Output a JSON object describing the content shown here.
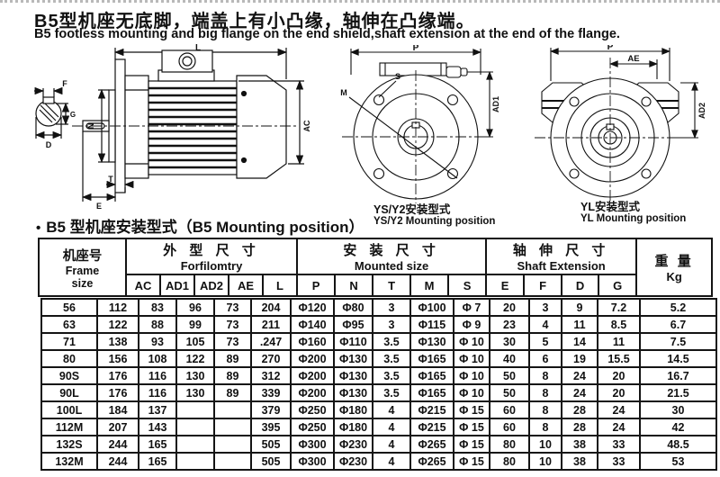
{
  "header": {
    "title_cn": "B5型机座无底脚，端盖上有小凸缘，轴伸在凸缘端。",
    "title_en": "B5 footless mounting and big flange on the end shield,shaft extension at the end of the flange."
  },
  "section": {
    "bullet": "•",
    "heading": "B5 型机座安装型式（B5 Mounting position）"
  },
  "drawings": {
    "side_view": {
      "dim_labels": {
        "L": "L",
        "AC": "AC",
        "N": "N",
        "T": "T",
        "E": "E",
        "F": "F",
        "G": "G",
        "D": "D"
      }
    },
    "ys": {
      "dim_labels": {
        "P": "P",
        "M": "M",
        "S": "S",
        "AD1": "AD1"
      },
      "caption_cn": "YS/Y2安装型式",
      "caption_en": "YS/Y2 Mounting position"
    },
    "yl": {
      "dim_labels": {
        "P": "P",
        "AE": "AE",
        "AD2": "AD2"
      },
      "caption_cn": "YL安装型式",
      "caption_en": "YL Mounting position"
    }
  },
  "table": {
    "frame": {
      "cn": "机座号",
      "en_line1": "Frame",
      "en_line2": "size"
    },
    "groups": [
      {
        "cn": "外 型 尺 寸",
        "en": "Forfilomtry",
        "cols": [
          "AC",
          "AD1",
          "AD2",
          "AE",
          "L"
        ]
      },
      {
        "cn": "安 装 尺 寸",
        "en": "Mounted size",
        "cols": [
          "P",
          "N",
          "T",
          "M",
          "S"
        ]
      },
      {
        "cn": "轴 伸 尺 寸",
        "en": "Shaft Extension",
        "cols": [
          "E",
          "F",
          "D",
          "G"
        ]
      }
    ],
    "weight": {
      "cn": "重 量",
      "unit": "Kg"
    },
    "rows": [
      [
        "56",
        "112",
        "83",
        "96",
        "73",
        "204",
        "Φ120",
        "Φ80",
        "3",
        "Φ100",
        "Φ 7",
        "20",
        "3",
        "9",
        "7.2",
        "5.2"
      ],
      [
        "63",
        "122",
        "88",
        "99",
        "73",
        "211",
        "Φ140",
        "Φ95",
        "3",
        "Φ115",
        "Φ 9",
        "23",
        "4",
        "11",
        "8.5",
        "6.7"
      ],
      [
        "71",
        "138",
        "93",
        "105",
        "73",
        ".247",
        "Φ160",
        "Φ110",
        "3.5",
        "Φ130",
        "Φ 10",
        "30",
        "5",
        "14",
        "11",
        "7.5"
      ],
      [
        "80",
        "156",
        "108",
        "122",
        "89",
        "270",
        "Φ200",
        "Φ130",
        "3.5",
        "Φ165",
        "Φ 10",
        "40",
        "6",
        "19",
        "15.5",
        "14.5"
      ],
      [
        "90S",
        "176",
        "116",
        "130",
        "89",
        "312",
        "Φ200",
        "Φ130",
        "3.5",
        "Φ165",
        "Φ 10",
        "50",
        "8",
        "24",
        "20",
        "16.7"
      ],
      [
        "90L",
        "176",
        "116",
        "130",
        "89",
        "339",
        "Φ200",
        "Φ130",
        "3.5",
        "Φ165",
        "Φ 10",
        "50",
        "8",
        "24",
        "20",
        "21.5"
      ],
      [
        "100L",
        "184",
        "137",
        "",
        "",
        "379",
        "Φ250",
        "Φ180",
        "4",
        "Φ215",
        "Φ 15",
        "60",
        "8",
        "28",
        "24",
        "30"
      ],
      [
        "112M",
        "207",
        "143",
        "",
        "",
        "395",
        "Φ250",
        "Φ180",
        "4",
        "Φ215",
        "Φ 15",
        "60",
        "8",
        "28",
        "24",
        "42"
      ],
      [
        "132S",
        "244",
        "165",
        "",
        "",
        "505",
        "Φ300",
        "Φ230",
        "4",
        "Φ265",
        "Φ 15",
        "80",
        "10",
        "38",
        "33",
        "48.5"
      ],
      [
        "132M",
        "244",
        "165",
        "",
        "",
        "505",
        "Φ300",
        "Φ230",
        "4",
        "Φ265",
        "Φ 15",
        "80",
        "10",
        "38",
        "33",
        "53"
      ]
    ]
  }
}
